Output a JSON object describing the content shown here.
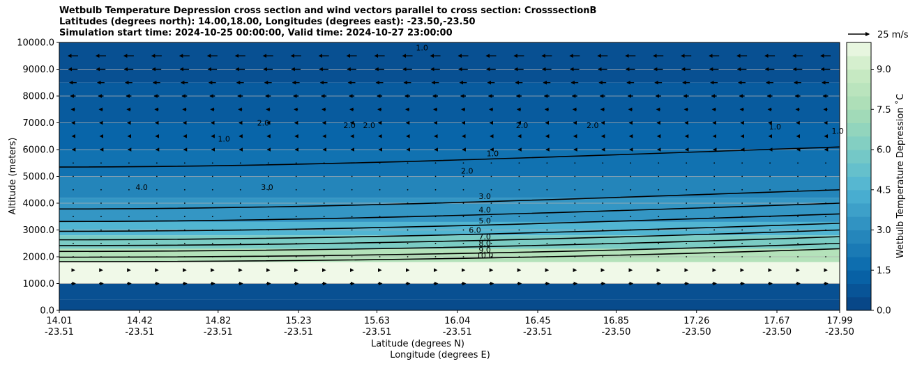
{
  "chart_data": {
    "type": "contourf",
    "title": [
      "Wetbulb Temperature Depression cross section and wind vectors parallel to cross section: CrosssectionB",
      "Latitudes (degrees north): 14.00,18.00, Longitudes (degrees east): -23.50,-23.50",
      "Simulation start time: 2024-10-25 00:00:00, Valid time: 2024-10-27 23:00:00"
    ],
    "xlabel": "Latitude (degrees N)",
    "xlabel2": "Longitude (degrees E)",
    "ylabel": "Altitude (meters)",
    "colorbar_label": "Wetbulb Temperature Depression ˚C",
    "ylim": [
      0,
      10000
    ],
    "xlim": [
      14.01,
      17.99
    ],
    "x_ticks": [
      {
        "lat": "14.01",
        "lon": "-23.51",
        "value": 14.01
      },
      {
        "lat": "14.42",
        "lon": "-23.51",
        "value": 14.42
      },
      {
        "lat": "14.82",
        "lon": "-23.51",
        "value": 14.82
      },
      {
        "lat": "15.23",
        "lon": "-23.51",
        "value": 15.23
      },
      {
        "lat": "15.63",
        "lon": "-23.51",
        "value": 15.63
      },
      {
        "lat": "16.04",
        "lon": "-23.51",
        "value": 16.04
      },
      {
        "lat": "16.45",
        "lon": "-23.51",
        "value": 16.45
      },
      {
        "lat": "16.85",
        "lon": "-23.50",
        "value": 16.85
      },
      {
        "lat": "17.26",
        "lon": "-23.50",
        "value": 17.26
      },
      {
        "lat": "17.67",
        "lon": "-23.50",
        "value": 17.67
      },
      {
        "lat": "17.99",
        "lon": "-23.50",
        "value": 17.99
      }
    ],
    "y_ticks": [
      "0.0",
      "1000.0",
      "2000.0",
      "3000.0",
      "4000.0",
      "5000.0",
      "6000.0",
      "7000.0",
      "8000.0",
      "9000.0",
      "10000.0"
    ],
    "colorbar_ticks": [
      "0.0",
      "1.5",
      "3.0",
      "4.5",
      "6.0",
      "7.5",
      "9.0"
    ],
    "colorbar_range": [
      0,
      10
    ],
    "quiver_key": "25 m/s",
    "contour_levels": [
      1.0,
      2.0,
      3.0,
      4.0,
      5.0,
      6.0,
      7.0,
      8.0,
      9.0,
      10.0
    ],
    "contour_labels": [
      {
        "text": "1.0",
        "x": 14.85,
        "y": 6300
      },
      {
        "text": "1.0",
        "x": 15.86,
        "y": 9700
      },
      {
        "text": "1.0",
        "x": 16.22,
        "y": 5750
      },
      {
        "text": "1.0",
        "x": 17.66,
        "y": 6750
      },
      {
        "text": "1.0",
        "x": 17.98,
        "y": 6600
      },
      {
        "text": "2.0",
        "x": 15.05,
        "y": 6900
      },
      {
        "text": "2.0",
        "x": 15.49,
        "y": 6800
      },
      {
        "text": "2.0",
        "x": 15.59,
        "y": 6800
      },
      {
        "text": "2.0",
        "x": 16.09,
        "y": 5100
      },
      {
        "text": "2.0",
        "x": 16.37,
        "y": 6800
      },
      {
        "text": "2.0",
        "x": 16.73,
        "y": 6800
      },
      {
        "text": "3.0",
        "x": 15.07,
        "y": 4500
      },
      {
        "text": "3.0",
        "x": 16.18,
        "y": 4150
      },
      {
        "text": "4.0",
        "x": 14.43,
        "y": 4500
      },
      {
        "text": "4.0",
        "x": 16.18,
        "y": 3650
      },
      {
        "text": "5.0",
        "x": 16.18,
        "y": 3250
      },
      {
        "text": "6.0",
        "x": 16.13,
        "y": 2900
      },
      {
        "text": "7.0",
        "x": 16.18,
        "y": 2650
      },
      {
        "text": "8.0",
        "x": 16.18,
        "y": 2400
      },
      {
        "text": "9.0",
        "x": 16.18,
        "y": 2150
      },
      {
        "text": "10.0",
        "x": 16.18,
        "y": 1950
      }
    ],
    "field_bands": [
      {
        "y0": 0,
        "y1": 400,
        "value": 0.4
      },
      {
        "y0": 400,
        "y1": 1000,
        "value": 0.6
      },
      {
        "y0": 1000,
        "y1": 1800,
        "value": 10.0
      },
      {
        "y0": 1800,
        "y1": 2300,
        "value": 8.0
      },
      {
        "y0": 2300,
        "y1": 2800,
        "value": 6.0
      },
      {
        "y0": 2800,
        "y1": 3300,
        "value": 4.6
      },
      {
        "y0": 3300,
        "y1": 4200,
        "value": 3.4
      },
      {
        "y0": 4200,
        "y1": 5000,
        "value": 2.7
      },
      {
        "y0": 5000,
        "y1": 6000,
        "value": 1.9
      },
      {
        "y0": 6000,
        "y1": 7000,
        "value": 1.4
      },
      {
        "y0": 7000,
        "y1": 8500,
        "value": 1.0
      },
      {
        "y0": 8500,
        "y1": 10000,
        "value": 0.6
      }
    ],
    "wind_rows": [
      {
        "y": 9500,
        "u": -1.0
      },
      {
        "y": 9000,
        "u": -0.9
      },
      {
        "y": 8500,
        "u": -0.7
      },
      {
        "y": 8000,
        "u": -0.5
      },
      {
        "y": 7500,
        "u": -0.35
      },
      {
        "y": 7000,
        "u": -0.25
      },
      {
        "y": 6500,
        "u": -0.2
      },
      {
        "y": 6000,
        "u": -0.15
      },
      {
        "y": 5500,
        "u": -0.1
      },
      {
        "y": 5000,
        "u": -0.05
      },
      {
        "y": 4500,
        "u": -0.05
      },
      {
        "y": 4000,
        "u": -0.05
      },
      {
        "y": 3500,
        "u": -0.1
      },
      {
        "y": 3000,
        "u": -0.1
      },
      {
        "y": 2500,
        "u": -0.05
      },
      {
        "y": 2000,
        "u": 0.05
      },
      {
        "y": 1500,
        "u": 0.25
      },
      {
        "y": 1000,
        "u": 0.4
      }
    ],
    "grid": true
  }
}
